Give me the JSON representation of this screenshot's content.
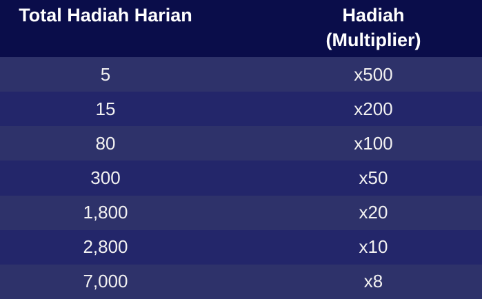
{
  "header": {
    "col1": "Total Hadiah Harian",
    "col2_line1": "Hadiah",
    "col2_line2": "(Multiplier)"
  },
  "chart_data": {
    "type": "table",
    "columns": [
      "Total Hadiah Harian",
      "Hadiah (Multiplier)"
    ],
    "rows": [
      [
        "5",
        "x500"
      ],
      [
        "15",
        "x200"
      ],
      [
        "80",
        "x100"
      ],
      [
        "300",
        "x50"
      ],
      [
        "1,800",
        "x20"
      ],
      [
        "2,800",
        "x10"
      ],
      [
        "7,000",
        "x8"
      ]
    ]
  },
  "colors": {
    "header_bg": "#0A0D4A",
    "header_text": "#FFFFFF",
    "row_light": "#2E326A",
    "row_dark": "#23266A",
    "row_text": "#F2F1F1"
  }
}
